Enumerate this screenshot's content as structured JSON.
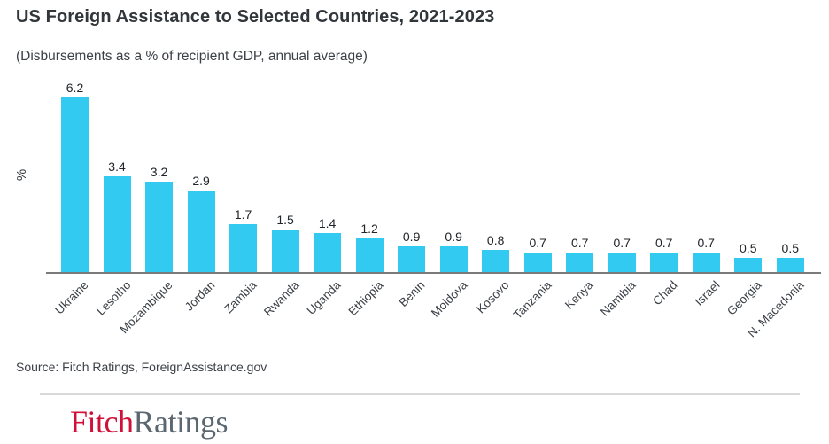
{
  "chart_data": {
    "type": "bar",
    "title": "US Foreign Assistance to Selected Countries, 2021-2023",
    "subtitle": "(Disbursements as a % of recipient GDP, annual average)",
    "ylabel": "%",
    "xlabel": "",
    "categories": [
      "Ukraine",
      "Lesotho",
      "Mozambique",
      "Jordan",
      "Zambia",
      "Rwanda",
      "Uganda",
      "Ethiopia",
      "Benin",
      "Moldova",
      "Kosovo",
      "Tanzania",
      "Kenya",
      "Namibia",
      "Chad",
      "Israel",
      "Georgia",
      "N. Macedonia"
    ],
    "values": [
      6.2,
      3.4,
      3.2,
      2.9,
      1.7,
      1.5,
      1.4,
      1.2,
      0.9,
      0.9,
      0.8,
      0.7,
      0.7,
      0.7,
      0.7,
      0.7,
      0.5,
      0.5
    ],
    "data_labels": true,
    "label_decimals": 1,
    "ylim": [
      0,
      6.8
    ],
    "yticks_visible": false,
    "grid": false,
    "legend": false,
    "x_label_rotation_deg": 45,
    "bar_color": "#33CAF2",
    "axis_line_color": "#7B7B7B"
  },
  "footer": {
    "source": "Source: Fitch Ratings, ForeignAssistance.gov",
    "divider_color": "#D9D9D9",
    "logo": {
      "part1": "Fitch",
      "part2": "Ratings",
      "part1_color": "#D0103A",
      "part2_color": "#5B6770"
    }
  }
}
